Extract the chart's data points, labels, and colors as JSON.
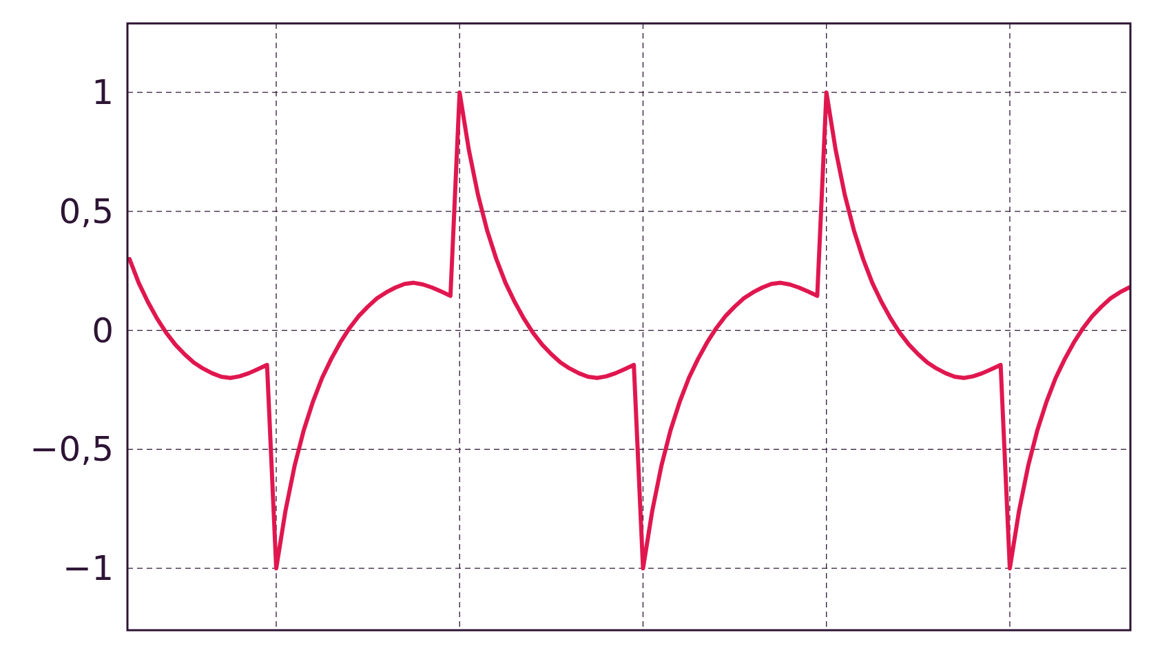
{
  "chart_data": {
    "type": "line",
    "tick_labels": "y",
    "grid": true,
    "ylim": [
      -1.26,
      1.29
    ],
    "yticks": [
      {
        "value": -1,
        "label": "−1"
      },
      {
        "value": -0.5,
        "label": "−0,5"
      },
      0,
      {
        "value": 0.5,
        "label": "0,5"
      },
      1
    ],
    "categories": [
      null,
      null,
      null,
      null,
      null,
      null,
      null,
      null,
      null,
      null,
      null,
      null,
      null,
      null,
      null,
      null,
      null,
      null,
      null,
      null,
      null,
      null,
      null,
      null,
      null,
      null,
      null,
      null,
      null,
      null,
      null,
      null,
      null,
      null,
      null,
      null,
      null,
      null,
      null,
      null,
      null,
      null,
      null,
      null,
      null,
      null,
      null,
      null,
      null,
      null,
      null,
      null,
      null,
      null,
      null,
      null,
      null,
      null,
      null,
      null,
      null,
      null,
      null,
      null,
      null,
      null,
      null,
      null,
      null,
      null,
      null,
      null,
      null,
      null,
      null,
      null,
      null,
      null,
      null,
      null,
      null,
      null,
      null,
      null,
      null,
      null,
      null,
      null,
      null,
      null,
      null,
      null,
      null,
      null,
      null,
      null,
      null,
      null,
      null,
      null,
      null,
      null,
      null,
      null,
      null,
      null,
      null,
      null,
      null,
      null
    ],
    "series": [
      {
        "color": "#e0174f",
        "line_style": "solid",
        "values": [
          0.3,
          0.2,
          0.12,
          0.05,
          -0.01,
          -0.06,
          -0.1,
          -0.135,
          -0.16,
          -0.18,
          -0.195,
          -0.2,
          -0.193,
          -0.18,
          -0.163,
          -0.145,
          -1,
          -0.76,
          -0.57,
          -0.42,
          -0.3,
          -0.2,
          -0.12,
          -0.05,
          0.01,
          0.06,
          0.1,
          0.135,
          0.16,
          0.18,
          0.195,
          0.2,
          0.193,
          0.18,
          0.163,
          0.145,
          1,
          0.76,
          0.57,
          0.42,
          0.3,
          0.2,
          0.12,
          0.05,
          -0.01,
          -0.06,
          -0.1,
          -0.135,
          -0.16,
          -0.18,
          -0.195,
          -0.2,
          -0.193,
          -0.18,
          -0.163,
          -0.145,
          -1,
          -0.76,
          -0.57,
          -0.42,
          -0.3,
          -0.2,
          -0.12,
          -0.05,
          0.01,
          0.06,
          0.1,
          0.135,
          0.16,
          0.18,
          0.195,
          0.2,
          0.193,
          0.18,
          0.163,
          0.145,
          1,
          0.76,
          0.57,
          0.42,
          0.3,
          0.2,
          0.12,
          0.05,
          -0.01,
          -0.06,
          -0.1,
          -0.135,
          -0.16,
          -0.18,
          -0.195,
          -0.2,
          -0.193,
          -0.18,
          -0.163,
          -0.145,
          -1,
          -0.76,
          -0.57,
          -0.42,
          -0.3,
          -0.2,
          -0.12,
          -0.05,
          0.01,
          0.06,
          0.1,
          0.135,
          0.16,
          0.18
        ]
      }
    ]
  }
}
